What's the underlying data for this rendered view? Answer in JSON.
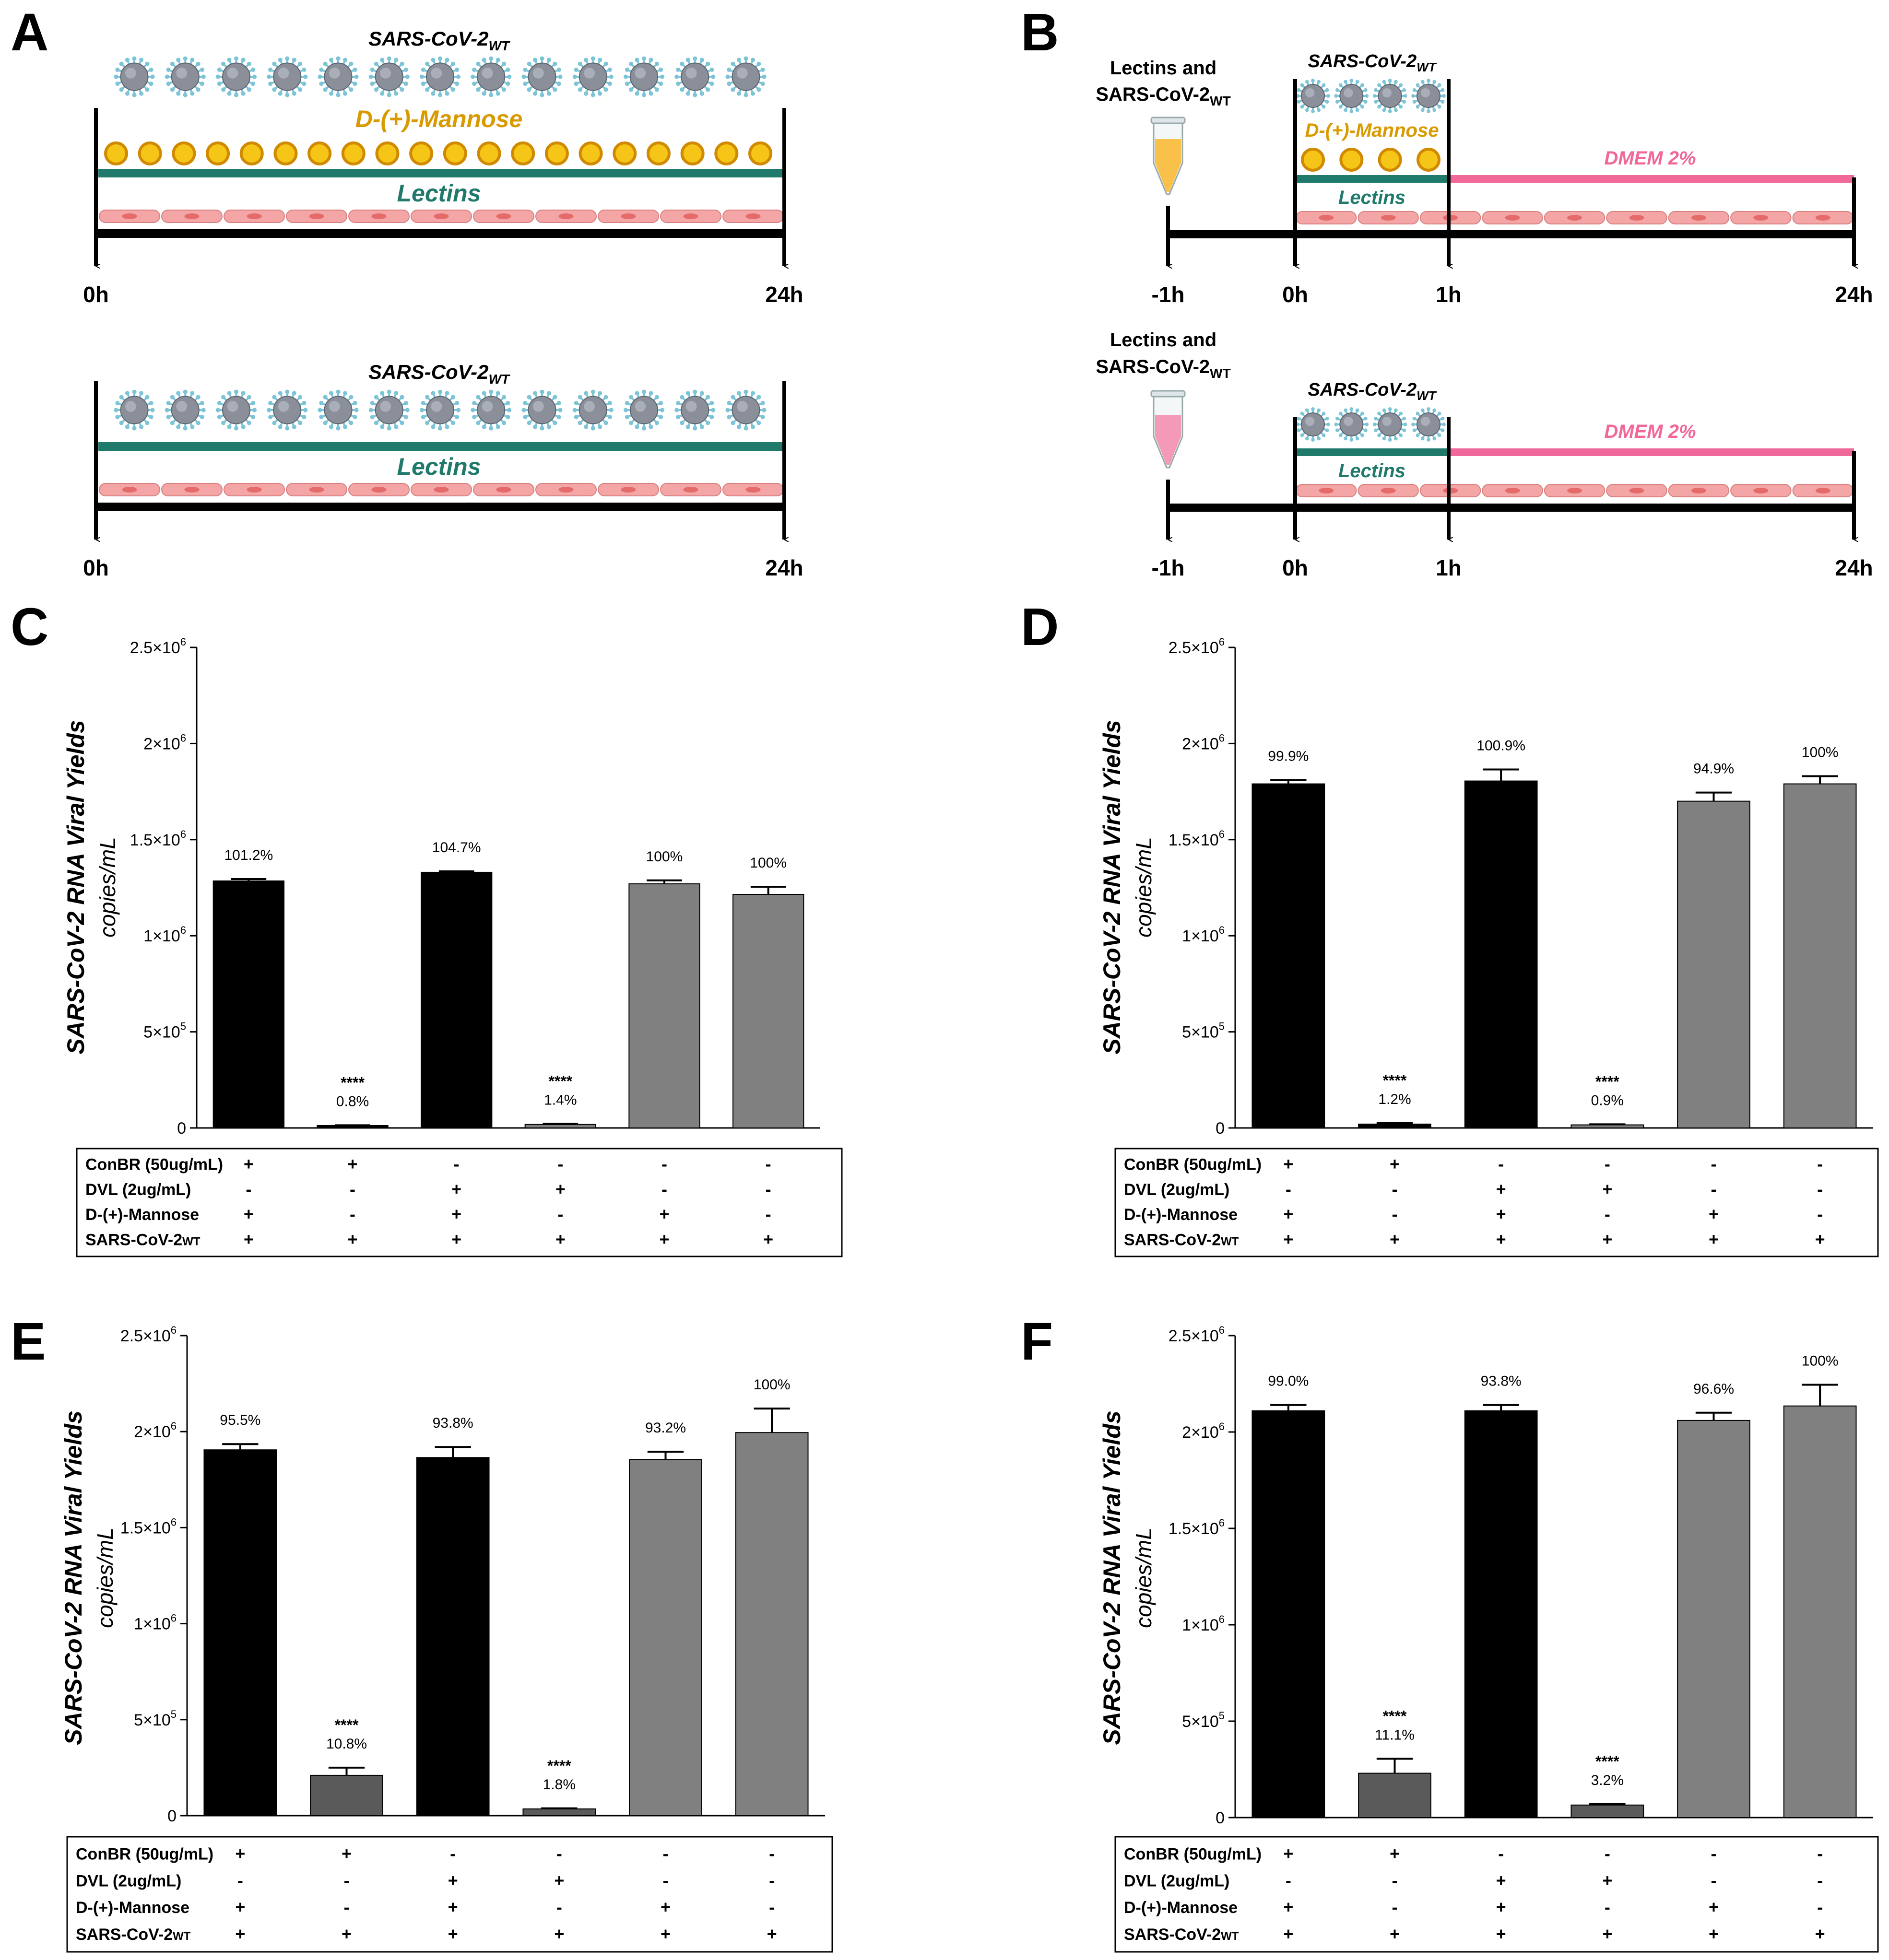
{
  "panels": {
    "A": {
      "letter": "A",
      "top": {
        "virus_label": "SARS-CoV-2",
        "virus_sub": "WT",
        "sugar_label": "D-(+)-Mannose",
        "lectin_label": "Lectins",
        "t_start": "0h",
        "t_end": "24h"
      },
      "bottom": {
        "virus_label": "SARS-CoV-2",
        "virus_sub": "WT",
        "lectin_label": "Lectins",
        "t_start": "0h",
        "t_end": "24h"
      }
    },
    "B": {
      "letter": "B",
      "top": {
        "tube_label_1": "Lectins and",
        "tube_label_2": "SARS-CoV-2",
        "tube_sub": "WT",
        "virus_label": "SARS-CoV-2",
        "virus_sub": "WT",
        "sugar_label": "D-(+)-Mannose",
        "lectin_label": "Lectins",
        "media_label": "DMEM 2%",
        "t1": "-1h",
        "t2": "0h",
        "t3": "1h",
        "t4": "24h"
      },
      "bottom": {
        "tube_label_1": "Lectins and",
        "tube_label_2": "SARS-CoV-2",
        "tube_sub": "WT",
        "virus_label": "SARS-CoV-2",
        "virus_sub": "WT",
        "lectin_label": "Lectins",
        "media_label": "DMEM 2%",
        "t1": "-1h",
        "t2": "0h",
        "t3": "1h",
        "t4": "24h"
      }
    }
  },
  "colors": {
    "virus_core": "#8a8f99",
    "virus_spike": "#7cc4d6",
    "mannose_fill": "#f5c518",
    "mannose_edge": "#d18a00",
    "mannose_text": "#d99a00",
    "lectin_bar": "#1f7a6b",
    "lectin_text": "#1f7a6b",
    "dmem": "#f0679a",
    "cell_fill": "#f4a6a6",
    "cell_nucleus": "#e56a6a",
    "tube_yellow": "#f9c04a",
    "tube_pink": "#f49ab8",
    "bar_black": "#000000",
    "bar_dark": "#5a5a5a",
    "bar_gray": "#808080"
  },
  "chart_data": [
    {
      "panel": "C",
      "type": "bar",
      "ylabel": "SARS-CoV-2 RNA Viral Yields",
      "ylabel2": "copies/mL",
      "ylim": [
        0,
        2500000
      ],
      "yticks": [
        {
          "value": 0,
          "base": "0",
          "exp": ""
        },
        {
          "value": 500000,
          "base": "5×10",
          "exp": "5"
        },
        {
          "value": 1000000,
          "base": "1×10",
          "exp": "6"
        },
        {
          "value": 1500000,
          "base": "1.5×10",
          "exp": "6"
        },
        {
          "value": 2000000,
          "base": "2×10",
          "exp": "6"
        },
        {
          "value": 2500000,
          "base": "2.5×10",
          "exp": "6"
        }
      ],
      "values": [
        1285000,
        10000,
        1330000,
        18000,
        1270000,
        1215000
      ],
      "errors": [
        10000,
        4000,
        5000,
        3000,
        18000,
        40000
      ],
      "percent_labels": [
        "101.2%",
        "0.8%",
        "104.7%",
        "1.4%",
        "100%",
        "100%"
      ],
      "stars": [
        "",
        "****",
        "",
        "****",
        "",
        ""
      ],
      "bar_colors": [
        "black",
        "black",
        "black",
        "gray",
        "gray",
        "gray"
      ],
      "table": {
        "rows": [
          {
            "label": "ConBR (50ug/mL)",
            "cells": [
              "+",
              "+",
              "-",
              "-",
              "-",
              "-"
            ]
          },
          {
            "label": "DVL (2ug/mL)",
            "cells": [
              "-",
              "-",
              "+",
              "+",
              "-",
              "-"
            ]
          },
          {
            "label": "D-(+)-Mannose",
            "cells": [
              "+",
              "-",
              "+",
              "-",
              "+",
              "-"
            ]
          },
          {
            "label": "SARS-CoV-2",
            "sub": "WT",
            "cells": [
              "+",
              "+",
              "+",
              "+",
              "+",
              "+"
            ]
          }
        ]
      }
    },
    {
      "panel": "D",
      "type": "bar",
      "ylabel": "SARS-CoV-2 RNA Viral Yields",
      "ylabel2": "copies/mL",
      "ylim": [
        0,
        2500000
      ],
      "yticks": [
        {
          "value": 0,
          "base": "0",
          "exp": ""
        },
        {
          "value": 500000,
          "base": "5×10",
          "exp": "5"
        },
        {
          "value": 1000000,
          "base": "1×10",
          "exp": "6"
        },
        {
          "value": 1500000,
          "base": "1.5×10",
          "exp": "6"
        },
        {
          "value": 2000000,
          "base": "2×10",
          "exp": "6"
        },
        {
          "value": 2500000,
          "base": "2.5×10",
          "exp": "6"
        }
      ],
      "values": [
        1790000,
        20000,
        1805000,
        16000,
        1700000,
        1790000
      ],
      "errors": [
        20000,
        5000,
        60000,
        3000,
        45000,
        40000
      ],
      "percent_labels": [
        "99.9%",
        "1.2%",
        "100.9%",
        "0.9%",
        "94.9%",
        "100%"
      ],
      "stars": [
        "",
        "****",
        "",
        "****",
        "",
        ""
      ],
      "bar_colors": [
        "black",
        "black",
        "black",
        "gray",
        "gray",
        "gray"
      ],
      "table": {
        "rows": [
          {
            "label": "ConBR (50ug/mL)",
            "cells": [
              "+",
              "+",
              "-",
              "-",
              "-",
              "-"
            ]
          },
          {
            "label": "DVL (2ug/mL)",
            "cells": [
              "-",
              "-",
              "+",
              "+",
              "-",
              "-"
            ]
          },
          {
            "label": "D-(+)-Mannose",
            "cells": [
              "+",
              "-",
              "+",
              "-",
              "+",
              "-"
            ]
          },
          {
            "label": "SARS-CoV-2",
            "sub": "WT",
            "cells": [
              "+",
              "+",
              "+",
              "+",
              "+",
              "+"
            ]
          }
        ]
      }
    },
    {
      "panel": "E",
      "type": "bar",
      "ylabel": "SARS-CoV-2 RNA Viral Yields",
      "ylabel2": "copies/mL",
      "ylim": [
        0,
        2500000
      ],
      "yticks": [
        {
          "value": 0,
          "base": "0",
          "exp": ""
        },
        {
          "value": 500000,
          "base": "5×10",
          "exp": "5"
        },
        {
          "value": 1000000,
          "base": "1×10",
          "exp": "6"
        },
        {
          "value": 1500000,
          "base": "1.5×10",
          "exp": "6"
        },
        {
          "value": 2000000,
          "base": "2×10",
          "exp": "6"
        },
        {
          "value": 2500000,
          "base": "2.5×10",
          "exp": "6"
        }
      ],
      "values": [
        1905000,
        210000,
        1865000,
        35000,
        1855000,
        1995000
      ],
      "errors": [
        30000,
        40000,
        55000,
        3000,
        40000,
        125000
      ],
      "percent_labels": [
        "95.5%",
        "10.8%",
        "93.8%",
        "1.8%",
        "93.2%",
        "100%"
      ],
      "stars": [
        "",
        "****",
        "",
        "****",
        "",
        ""
      ],
      "bar_colors": [
        "black",
        "dark",
        "black",
        "dark",
        "gray",
        "gray"
      ],
      "table": {
        "rows": [
          {
            "label": "ConBR (50ug/mL)",
            "cells": [
              "+",
              "+",
              "-",
              "-",
              "-",
              "-"
            ]
          },
          {
            "label": "DVL (2ug/mL)",
            "cells": [
              "-",
              "-",
              "+",
              "+",
              "-",
              "-"
            ]
          },
          {
            "label": "D-(+)-Mannose",
            "cells": [
              "+",
              "-",
              "+",
              "-",
              "+",
              "-"
            ]
          },
          {
            "label": "SARS-CoV-2",
            "sub": "WT",
            "cells": [
              "+",
              "+",
              "+",
              "+",
              "+",
              "+"
            ]
          }
        ]
      }
    },
    {
      "panel": "F",
      "type": "bar",
      "ylabel": "SARS-CoV-2 RNA Viral Yields",
      "ylabel2": "copies/mL",
      "ylim": [
        0,
        2500000
      ],
      "yticks": [
        {
          "value": 0,
          "base": "0",
          "exp": ""
        },
        {
          "value": 500000,
          "base": "5×10",
          "exp": "5"
        },
        {
          "value": 1000000,
          "base": "1×10",
          "exp": "6"
        },
        {
          "value": 1500000,
          "base": "1.5×10",
          "exp": "6"
        },
        {
          "value": 2000000,
          "base": "2×10",
          "exp": "6"
        },
        {
          "value": 2500000,
          "base": "2.5×10",
          "exp": "6"
        }
      ],
      "values": [
        2110000,
        230000,
        2110000,
        65000,
        2060000,
        2135000
      ],
      "errors": [
        30000,
        75000,
        30000,
        5000,
        40000,
        110000
      ],
      "percent_labels": [
        "99.0%",
        "11.1%",
        "93.8%",
        "3.2%",
        "96.6%",
        "100%"
      ],
      "stars": [
        "",
        "****",
        "",
        "****",
        "",
        ""
      ],
      "bar_colors": [
        "black",
        "dark",
        "black",
        "dark",
        "gray",
        "gray"
      ],
      "table": {
        "rows": [
          {
            "label": "ConBR (50ug/mL)",
            "cells": [
              "+",
              "+",
              "-",
              "-",
              "-",
              "-"
            ]
          },
          {
            "label": "DVL (2ug/mL)",
            "cells": [
              "-",
              "-",
              "+",
              "+",
              "-",
              "-"
            ]
          },
          {
            "label": "D-(+)-Mannose",
            "cells": [
              "+",
              "-",
              "+",
              "-",
              "+",
              "-"
            ]
          },
          {
            "label": "SARS-CoV-2",
            "sub": "WT",
            "cells": [
              "+",
              "+",
              "+",
              "+",
              "+",
              "+"
            ]
          }
        ]
      }
    }
  ]
}
